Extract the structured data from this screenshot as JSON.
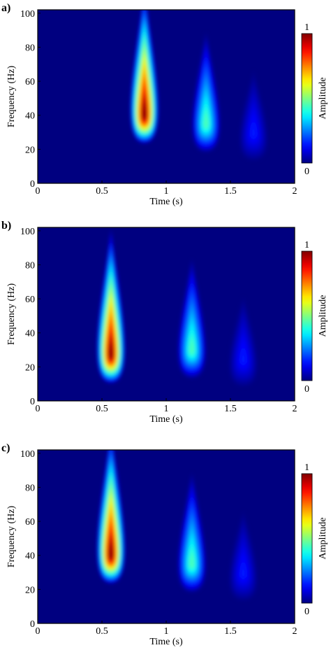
{
  "chart_data": [
    {
      "type": "spectrogram",
      "label": "a)",
      "xlabel": "Time (s)",
      "ylabel": "Frequency (Hz)",
      "colorbar_label": "Amplitude",
      "x": [
        0.83,
        1.31,
        1.68
      ],
      "y": [
        40,
        35,
        30
      ],
      "values": [
        1,
        0.45,
        0.15
      ],
      "xlim": [
        0,
        2
      ],
      "xticks": [
        0,
        0.5,
        1,
        1.5,
        2
      ],
      "ylim": [
        0,
        102
      ],
      "yticks": [
        0,
        20,
        40,
        60,
        80,
        100
      ],
      "clim": [
        0,
        1
      ],
      "cticks": [
        0,
        1
      ],
      "colormap": "jet"
    },
    {
      "type": "spectrogram",
      "label": "b)",
      "xlabel": "Time (s)",
      "ylabel": "Frequency (Hz)",
      "colorbar_label": "Amplitude",
      "x": [
        0.57,
        1.2,
        1.6
      ],
      "y": [
        27,
        30,
        25
      ],
      "values": [
        1,
        0.45,
        0.15
      ],
      "xlim": [
        0,
        2
      ],
      "xticks": [
        0,
        0.5,
        1,
        1.5,
        2
      ],
      "ylim": [
        0,
        102
      ],
      "yticks": [
        0,
        20,
        40,
        60,
        80,
        100
      ],
      "clim": [
        0,
        1
      ],
      "cticks": [
        0,
        1
      ],
      "colormap": "jet"
    },
    {
      "type": "spectrogram",
      "label": "c)",
      "xlabel": "Time (s)",
      "ylabel": "Frequency (Hz)",
      "colorbar_label": "Amplitude",
      "x": [
        0.57,
        1.2,
        1.6
      ],
      "y": [
        40,
        35,
        30
      ],
      "values": [
        1,
        0.45,
        0.15
      ],
      "xlim": [
        0,
        2
      ],
      "xticks": [
        0,
        0.5,
        1,
        1.5,
        2
      ],
      "ylim": [
        0,
        102
      ],
      "yticks": [
        0,
        20,
        40,
        60,
        80,
        100
      ],
      "clim": [
        0,
        1
      ],
      "cticks": [
        0,
        1
      ],
      "colormap": "jet"
    }
  ]
}
